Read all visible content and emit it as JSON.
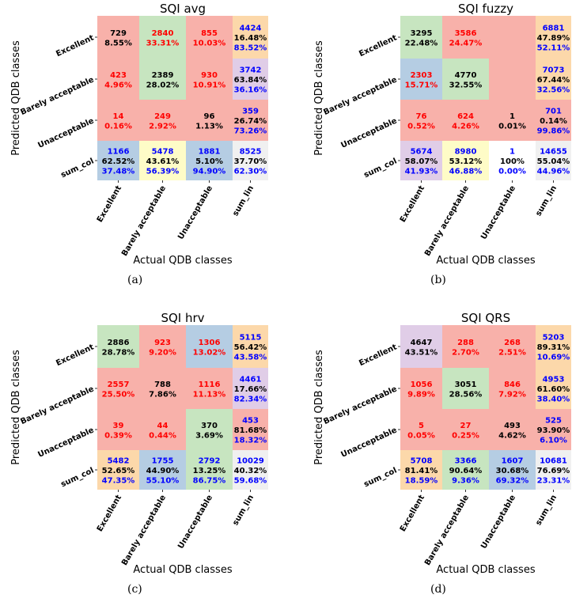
{
  "x_axis_label": "Actual QDB classes",
  "y_axis_label": "Predicted QDB classes",
  "row_labels": [
    "Excellent",
    "Barely acceptable",
    "Unacceptable",
    "sum_col"
  ],
  "col_labels": [
    "Excellent",
    "Barely acceptable",
    "Unacceptable",
    "sum_lin"
  ],
  "colors": {
    "red": "#f8b1aa",
    "green": "#c7e5c0",
    "blue": "#b5cde3",
    "purple": "#e0cde7",
    "orange": "#fcd8aa",
    "yellow": "#fefcc7",
    "gray": "#f0f0f0",
    "text_red": "#ff0000",
    "text_blue": "#0000ff",
    "text_black": "#000000"
  },
  "chart_data": [
    {
      "type": "table",
      "title": "SQI avg",
      "caption": "(a)",
      "cells": [
        [
          {
            "bg": "red",
            "tc": "black",
            "lines": [
              "729",
              "8.55%"
            ]
          },
          {
            "bg": "green",
            "tc": "red",
            "lines": [
              "2840",
              "33.31%"
            ]
          },
          {
            "bg": "red",
            "tc": "red",
            "lines": [
              "855",
              "10.03%"
            ]
          },
          {
            "bg": "orange",
            "tc": "sum",
            "lines": [
              "4424",
              "16.48%",
              "83.52%"
            ]
          }
        ],
        [
          {
            "bg": "red",
            "tc": "red",
            "lines": [
              "423",
              "4.96%"
            ]
          },
          {
            "bg": "green",
            "tc": "black",
            "lines": [
              "2389",
              "28.02%"
            ]
          },
          {
            "bg": "red",
            "tc": "red",
            "lines": [
              "930",
              "10.91%"
            ]
          },
          {
            "bg": "purple",
            "tc": "sum",
            "lines": [
              "3742",
              "63.84%",
              "36.16%"
            ]
          }
        ],
        [
          {
            "bg": "red",
            "tc": "red",
            "lines": [
              "14",
              "0.16%"
            ]
          },
          {
            "bg": "red",
            "tc": "red",
            "lines": [
              "249",
              "2.92%"
            ]
          },
          {
            "bg": "red",
            "tc": "black",
            "lines": [
              "96",
              "1.13%"
            ]
          },
          {
            "bg": "red",
            "tc": "sum",
            "lines": [
              "359",
              "26.74%",
              "73.26%"
            ]
          }
        ],
        [
          {
            "bg": "blue",
            "tc": "sum",
            "lines": [
              "1166",
              "62.52%",
              "37.48%"
            ]
          },
          {
            "bg": "yellow",
            "tc": "sum",
            "lines": [
              "5478",
              "43.61%",
              "56.39%"
            ]
          },
          {
            "bg": "blue",
            "tc": "sum",
            "lines": [
              "1881",
              "5.10%",
              "94.90%"
            ]
          },
          {
            "bg": "gray",
            "tc": "sum",
            "lines": [
              "8525",
              "37.70%",
              "62.30%"
            ]
          }
        ]
      ]
    },
    {
      "type": "table",
      "title": "SQI fuzzy",
      "caption": "(b)",
      "cells": [
        [
          {
            "bg": "green",
            "tc": "black",
            "lines": [
              "3295",
              "22.48%"
            ]
          },
          {
            "bg": "red",
            "tc": "red",
            "lines": [
              "3586",
              "24.47%"
            ]
          },
          {
            "bg": "red",
            "tc": "red",
            "lines": []
          },
          {
            "bg": "orange",
            "tc": "sum",
            "lines": [
              "6881",
              "47.89%",
              "52.11%"
            ]
          }
        ],
        [
          {
            "bg": "blue",
            "tc": "red",
            "lines": [
              "2303",
              "15.71%"
            ]
          },
          {
            "bg": "green",
            "tc": "black",
            "lines": [
              "4770",
              "32.55%"
            ]
          },
          {
            "bg": "red",
            "tc": "red",
            "lines": []
          },
          {
            "bg": "orange",
            "tc": "sum",
            "lines": [
              "7073",
              "67.44%",
              "32.56%"
            ]
          }
        ],
        [
          {
            "bg": "red",
            "tc": "red",
            "lines": [
              "76",
              "0.52%"
            ]
          },
          {
            "bg": "red",
            "tc": "red",
            "lines": [
              "624",
              "4.26%"
            ]
          },
          {
            "bg": "red",
            "tc": "black",
            "lines": [
              "1",
              "0.01%"
            ]
          },
          {
            "bg": "red",
            "tc": "sum",
            "lines": [
              "701",
              "0.14%",
              "99.86%"
            ]
          }
        ],
        [
          {
            "bg": "purple",
            "tc": "sum",
            "lines": [
              "5674",
              "58.07%",
              "41.93%"
            ]
          },
          {
            "bg": "yellow",
            "tc": "sum",
            "lines": [
              "8980",
              "53.12%",
              "46.88%"
            ]
          },
          {
            "bg": "white",
            "tc": "sum",
            "lines": [
              "1",
              "100%",
              "0.00%"
            ]
          },
          {
            "bg": "gray",
            "tc": "sum",
            "lines": [
              "14655",
              "55.04%",
              "44.96%"
            ]
          }
        ]
      ]
    },
    {
      "type": "table",
      "title": "SQI hrv",
      "caption": "(c)",
      "cells": [
        [
          {
            "bg": "green",
            "tc": "black",
            "lines": [
              "2886",
              "28.78%"
            ]
          },
          {
            "bg": "red",
            "tc": "red",
            "lines": [
              "923",
              "9.20%"
            ]
          },
          {
            "bg": "blue",
            "tc": "red",
            "lines": [
              "1306",
              "13.02%"
            ]
          },
          {
            "bg": "orange",
            "tc": "sum",
            "lines": [
              "5115",
              "56.42%",
              "43.58%"
            ]
          }
        ],
        [
          {
            "bg": "red",
            "tc": "red",
            "lines": [
              "2557",
              "25.50%"
            ]
          },
          {
            "bg": "red",
            "tc": "black",
            "lines": [
              "788",
              "7.86%"
            ]
          },
          {
            "bg": "red",
            "tc": "red",
            "lines": [
              "1116",
              "11.13%"
            ]
          },
          {
            "bg": "purple",
            "tc": "sum",
            "lines": [
              "4461",
              "17.66%",
              "82.34%"
            ]
          }
        ],
        [
          {
            "bg": "red",
            "tc": "red",
            "lines": [
              "39",
              "0.39%"
            ]
          },
          {
            "bg": "red",
            "tc": "red",
            "lines": [
              "44",
              "0.44%"
            ]
          },
          {
            "bg": "green",
            "tc": "black",
            "lines": [
              "370",
              "3.69%"
            ]
          },
          {
            "bg": "red",
            "tc": "sum",
            "lines": [
              "453",
              "81.68%",
              "18.32%"
            ]
          }
        ],
        [
          {
            "bg": "orange",
            "tc": "sum",
            "lines": [
              "5482",
              "52.65%",
              "47.35%"
            ]
          },
          {
            "bg": "blue",
            "tc": "sum",
            "lines": [
              "1755",
              "44.90%",
              "55.10%"
            ]
          },
          {
            "bg": "green",
            "tc": "sum",
            "lines": [
              "2792",
              "13.25%",
              "86.75%"
            ]
          },
          {
            "bg": "gray",
            "tc": "sum",
            "lines": [
              "10029",
              "40.32%",
              "59.68%"
            ]
          }
        ]
      ]
    },
    {
      "type": "table",
      "title": "SQI QRS",
      "caption": "(d)",
      "cells": [
        [
          {
            "bg": "purple",
            "tc": "black",
            "lines": [
              "4647",
              "43.51%"
            ]
          },
          {
            "bg": "red",
            "tc": "red",
            "lines": [
              "288",
              "2.70%"
            ]
          },
          {
            "bg": "red",
            "tc": "red",
            "lines": [
              "268",
              "2.51%"
            ]
          },
          {
            "bg": "orange",
            "tc": "sum",
            "lines": [
              "5203",
              "89.31%",
              "10.69%"
            ]
          }
        ],
        [
          {
            "bg": "red",
            "tc": "red",
            "lines": [
              "1056",
              "9.89%"
            ]
          },
          {
            "bg": "green",
            "tc": "black",
            "lines": [
              "3051",
              "28.56%"
            ]
          },
          {
            "bg": "red",
            "tc": "red",
            "lines": [
              "846",
              "7.92%"
            ]
          },
          {
            "bg": "orange",
            "tc": "sum",
            "lines": [
              "4953",
              "61.60%",
              "38.40%"
            ]
          }
        ],
        [
          {
            "bg": "red",
            "tc": "red",
            "lines": [
              "5",
              "0.05%"
            ]
          },
          {
            "bg": "red",
            "tc": "red",
            "lines": [
              "27",
              "0.25%"
            ]
          },
          {
            "bg": "red",
            "tc": "black",
            "lines": [
              "493",
              "4.62%"
            ]
          },
          {
            "bg": "red",
            "tc": "sum",
            "lines": [
              "525",
              "93.90%",
              "6.10%"
            ]
          }
        ],
        [
          {
            "bg": "orange",
            "tc": "sum",
            "lines": [
              "5708",
              "81.41%",
              "18.59%"
            ]
          },
          {
            "bg": "green",
            "tc": "sum",
            "lines": [
              "3366",
              "90.64%",
              "9.36%"
            ]
          },
          {
            "bg": "blue",
            "tc": "sum",
            "lines": [
              "1607",
              "30.68%",
              "69.32%"
            ]
          },
          {
            "bg": "gray",
            "tc": "sum",
            "lines": [
              "10681",
              "76.69%",
              "23.31%"
            ]
          }
        ]
      ]
    }
  ]
}
